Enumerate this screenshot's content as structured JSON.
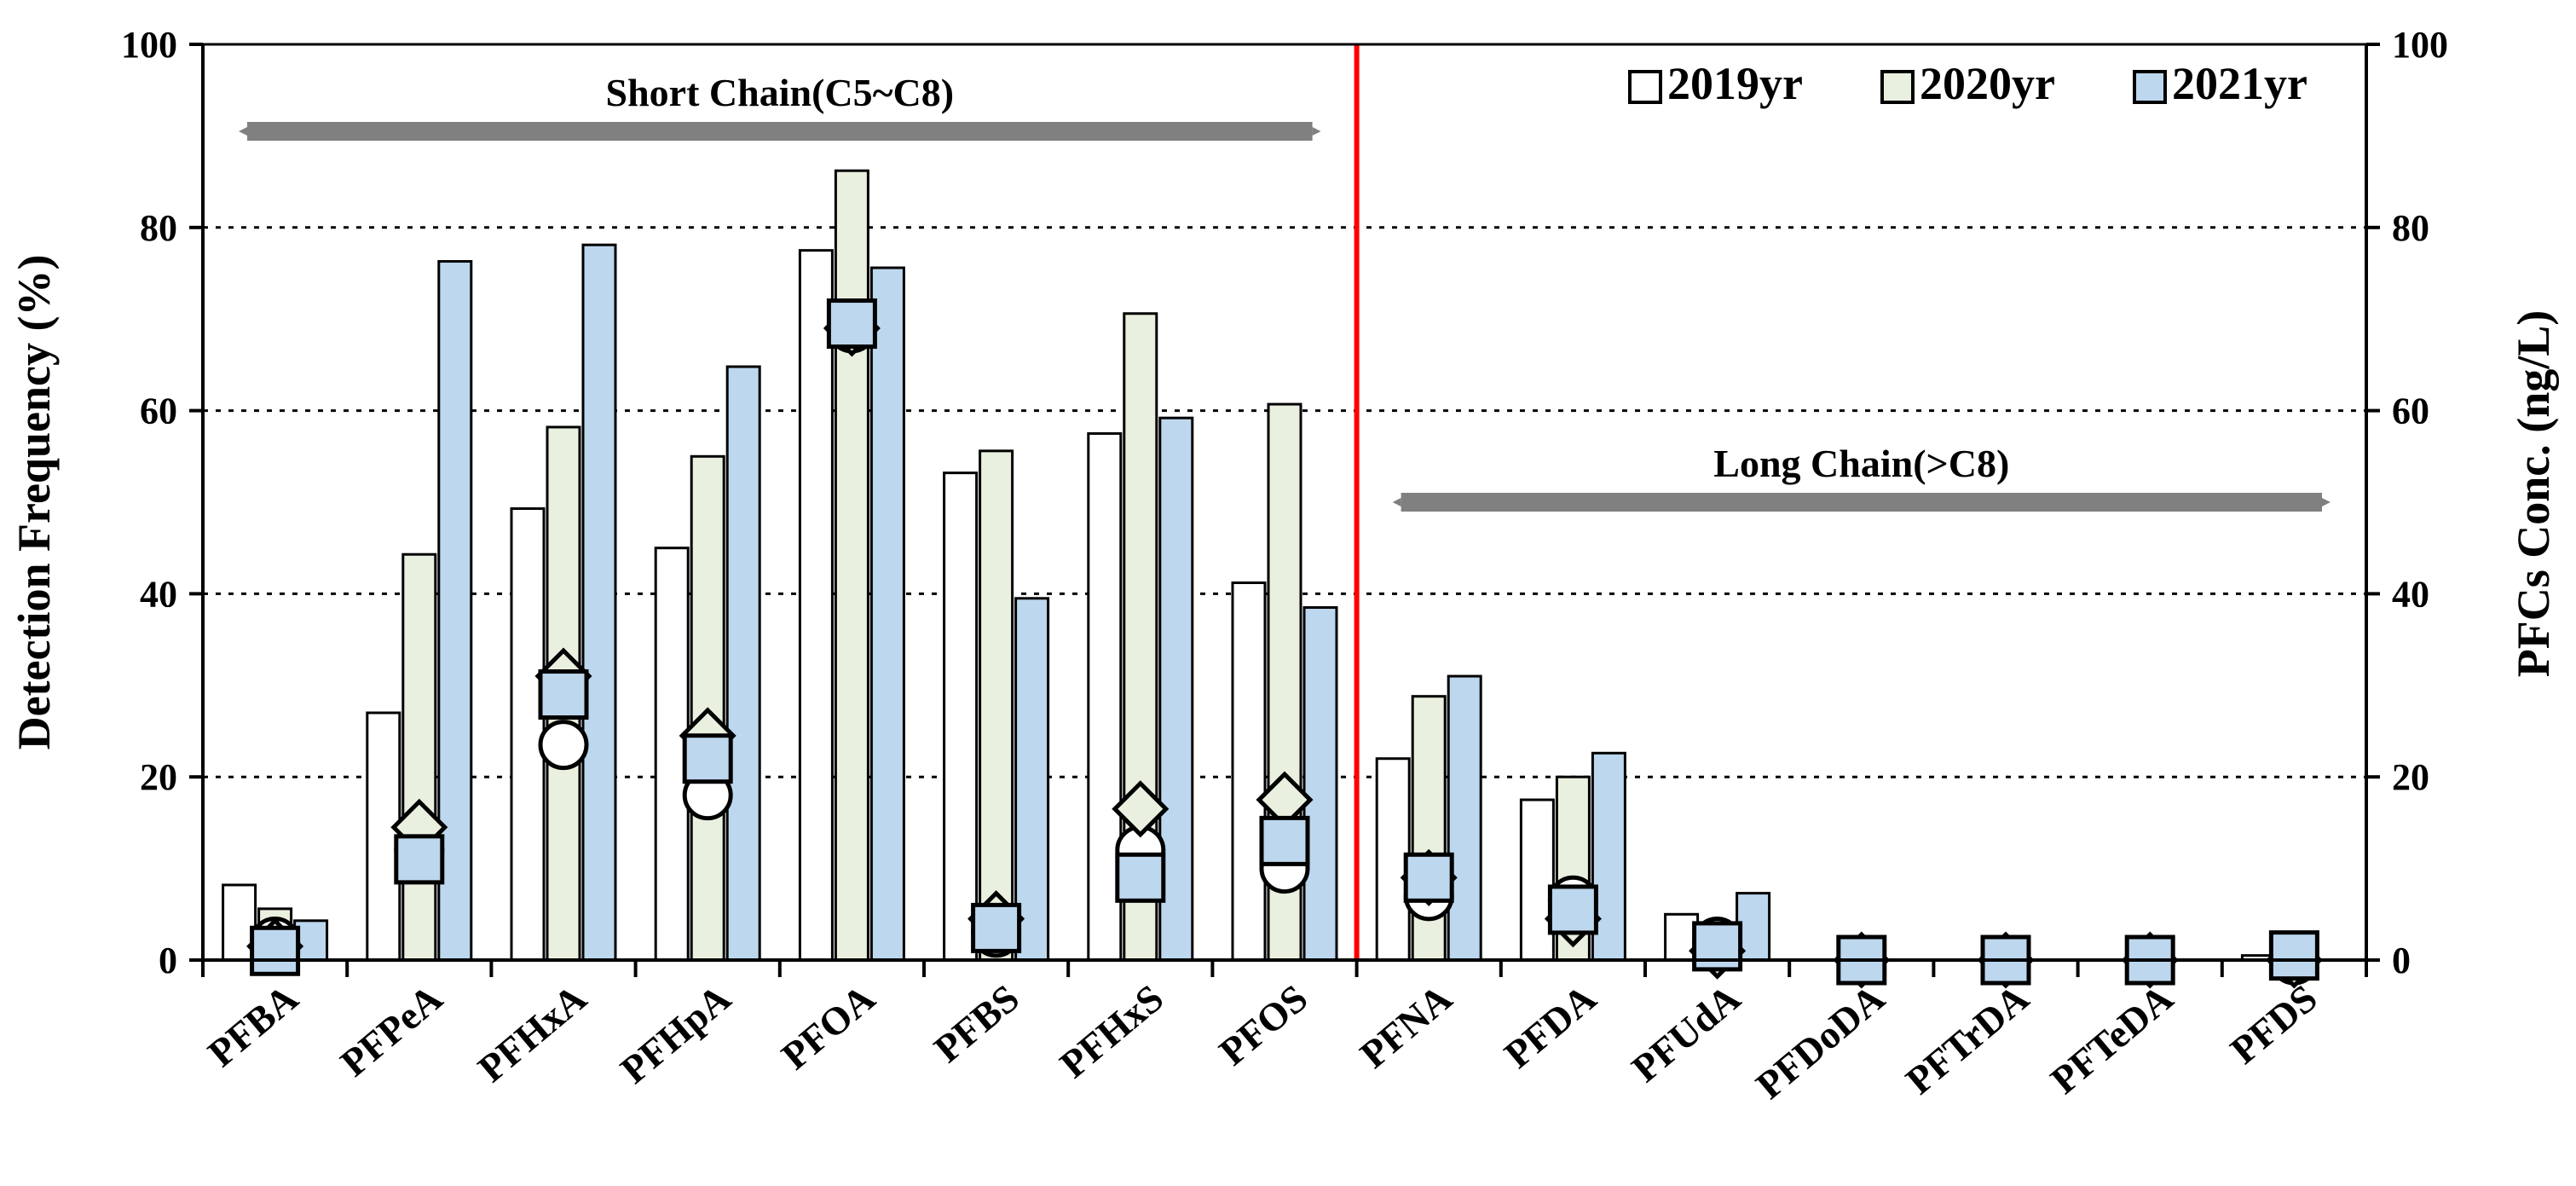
{
  "chart_data": {
    "type": "bar",
    "categories": [
      "PFBA",
      "PFPeA",
      "PFHxA",
      "PFHpA",
      "PFOA",
      "PFBS",
      "PFHxS",
      "PFOS",
      "PFNA",
      "PFDA",
      "PFUdA",
      "PFDoDA",
      "PFTrDA",
      "PFTeDA",
      "PFDS"
    ],
    "ylabel": "Detection Frequency (%)",
    "y2label": "PFCs Conc. (ng/L)",
    "ylim": [
      0,
      100
    ],
    "y2lim": [
      0,
      100
    ],
    "yticks": [
      0,
      20,
      40,
      60,
      80,
      100
    ],
    "y2ticks": [
      0,
      20,
      40,
      60,
      80,
      100
    ],
    "grid": "horizontal-dotted",
    "legend_position": "top-right",
    "series": [
      {
        "name": "2019yr",
        "color": "#ffffff",
        "values": [
          8.2,
          27,
          49.3,
          45,
          77.5,
          53.2,
          57.5,
          41.2,
          22,
          17.5,
          5,
          0,
          0,
          0,
          0.5
        ]
      },
      {
        "name": "2020yr",
        "color": "#eaf0df",
        "values": [
          5.6,
          44.3,
          58.2,
          55,
          86.2,
          55.6,
          70.6,
          60.7,
          28.8,
          20,
          0,
          0,
          0,
          0,
          0
        ]
      },
      {
        "name": "2021yr",
        "color": "#bdd7ee",
        "values": [
          4.3,
          76.3,
          78.1,
          64.8,
          75.6,
          39.5,
          59.2,
          38.5,
          31,
          22.6,
          7.3,
          0,
          0,
          0,
          0
        ]
      }
    ],
    "concentration_series": [
      {
        "name": "2019yr",
        "marker": "circle",
        "values": [
          2,
          12,
          23.5,
          18,
          69,
          3,
          12,
          10,
          7,
          6.5,
          2,
          0,
          0,
          0,
          0
        ]
      },
      {
        "name": "2020yr",
        "marker": "diamond",
        "values": [
          1.5,
          14.5,
          31,
          24.5,
          69,
          4.5,
          16.5,
          17.5,
          9,
          4.5,
          1,
          0,
          0,
          0,
          0
        ]
      },
      {
        "name": "2021yr",
        "marker": "square",
        "values": [
          1,
          11,
          29,
          22,
          69.5,
          3.5,
          9,
          13,
          9,
          5.5,
          1.5,
          0,
          0,
          0,
          0.5
        ]
      }
    ],
    "divider_after_category": "PFOS",
    "annotations": [
      {
        "text": "Short Chain(C5~C8)",
        "from": "PFBA",
        "to": "PFOS",
        "y": 90.5
      },
      {
        "text": "Long Chain(>C8)",
        "from": "PFNA",
        "to": "PFDS",
        "y": 50
      }
    ],
    "colors": {
      "divider": "#ff0000",
      "arrow": "#808080",
      "grid": "#000000"
    }
  }
}
